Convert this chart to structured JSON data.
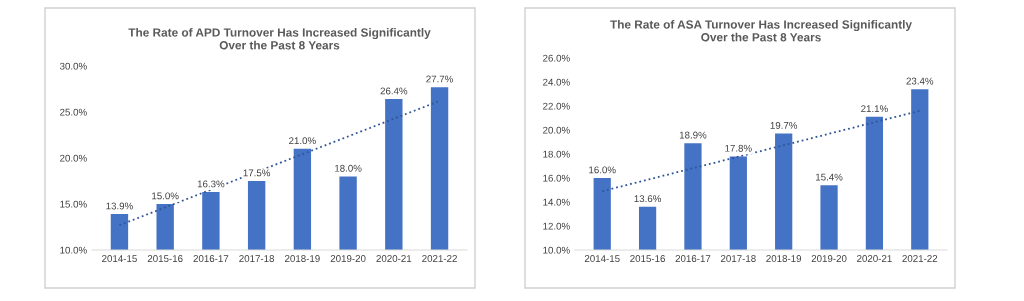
{
  "chart_data": [
    {
      "type": "bar",
      "title": "The Rate of APD Turnover Has Increased Significantly\nOver the Past 8 Years",
      "categories": [
        "2014-15",
        "2015-16",
        "2016-17",
        "2017-18",
        "2018-19",
        "2019-20",
        "2020-21",
        "2021-22"
      ],
      "series": [
        {
          "color": "#4472c4",
          "values": [
            13.9,
            15.0,
            16.3,
            17.5,
            21.0,
            18.0,
            26.4,
            27.7
          ],
          "value_labels": [
            "13.9%",
            "15.0%",
            "16.3%",
            "17.5%",
            "21.0%",
            "18.0%",
            "26.4%",
            "27.7%"
          ]
        },
        {
          "type": "line",
          "color": "#2f5597",
          "line_style": "dotted",
          "x": [
            "2014-15",
            "2021-22"
          ],
          "values": [
            12.7,
            26.2
          ]
        }
      ],
      "ylim": [
        10,
        30
      ],
      "yticks": [
        {
          "value": 10,
          "label": "10.0%"
        },
        {
          "value": 15,
          "label": "15.0%"
        },
        {
          "value": 20,
          "label": "20.0%"
        },
        {
          "value": 25,
          "label": "25.0%"
        },
        {
          "value": 30,
          "label": "30.0%"
        }
      ],
      "grid": false,
      "legend": false
    },
    {
      "type": "bar",
      "title": "The Rate of ASA Turnover Has Increased Significantly\nOver the Past 8 Years",
      "categories": [
        "2014-15",
        "2015-16",
        "2016-17",
        "2017-18",
        "2018-19",
        "2019-20",
        "2020-21",
        "2021-22"
      ],
      "series": [
        {
          "color": "#4472c4",
          "values": [
            16.0,
            13.6,
            18.9,
            17.8,
            19.7,
            15.4,
            21.1,
            23.4
          ],
          "value_labels": [
            "16.0%",
            "13.6%",
            "18.9%",
            "17.8%",
            "19.7%",
            "15.4%",
            "21.1%",
            "23.4%"
          ]
        },
        {
          "type": "line",
          "color": "#2f5597",
          "line_style": "dotted",
          "x": [
            "2014-15",
            "2021-22"
          ],
          "values": [
            14.9,
            21.6
          ]
        }
      ],
      "ylim": [
        10,
        26
      ],
      "yticks": [
        {
          "value": 10,
          "label": "10.0%"
        },
        {
          "value": 12,
          "label": "12.0%"
        },
        {
          "value": 14,
          "label": "14.0%"
        },
        {
          "value": 16,
          "label": "16.0%"
        },
        {
          "value": 18,
          "label": "18.0%"
        },
        {
          "value": 20,
          "label": "20.0%"
        },
        {
          "value": 22,
          "label": "22.0%"
        },
        {
          "value": 24,
          "label": "24.0%"
        },
        {
          "value": 26,
          "label": "26.0%"
        }
      ],
      "grid": false,
      "legend": false
    }
  ]
}
